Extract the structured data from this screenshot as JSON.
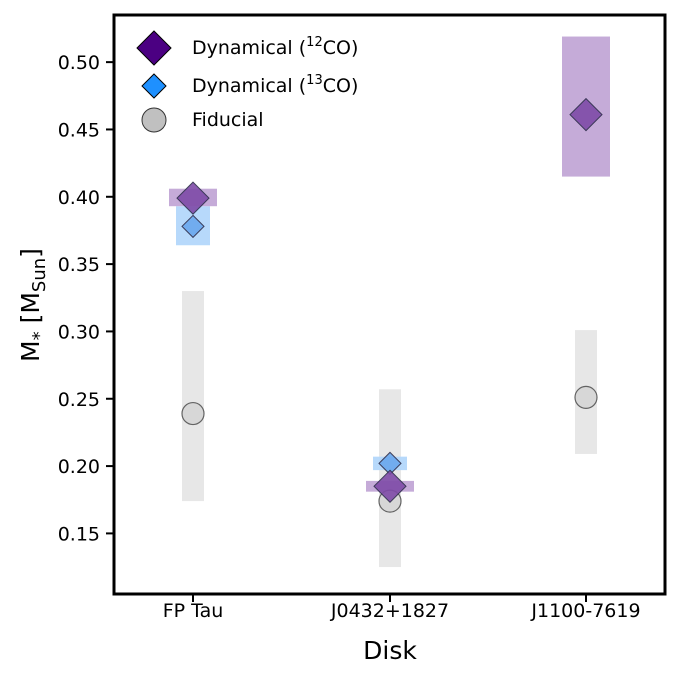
{
  "chart_data": {
    "type": "scatter",
    "title": "",
    "xlabel": "Disk",
    "ylabel_main": "M",
    "ylabel_sub": "*",
    "ylabel_unit_open": "[M",
    "ylabel_unit_sub": "Sun",
    "ylabel_unit_close": "]",
    "categories": [
      "FP Tau",
      "J0432+1827",
      "J1100-7619"
    ],
    "ylim": [
      0.105,
      0.535
    ],
    "yticks": [
      0.15,
      0.2,
      0.25,
      0.3,
      0.35,
      0.4,
      0.45,
      0.5
    ],
    "ytick_labels": [
      "0.15",
      "0.20",
      "0.25",
      "0.30",
      "0.35",
      "0.40",
      "0.45",
      "0.50"
    ],
    "legend_position": "top-left",
    "series": [
      {
        "name": "Dynamical (12CO)",
        "legend_prefix": "Dynamical (",
        "legend_sup": "12",
        "legend_suffix": "CO)",
        "marker": "diamond",
        "color": "#4b0082",
        "point_color": "#7f4ba8",
        "band_color": "#c2a6d6",
        "values": [
          0.399,
          0.185,
          0.461
        ],
        "lower": [
          0.393,
          0.181,
          0.415
        ],
        "upper": [
          0.406,
          0.189,
          0.519
        ]
      },
      {
        "name": "Dynamical (13CO)",
        "legend_prefix": "Dynamical (",
        "legend_sup": "13",
        "legend_suffix": "CO)",
        "marker": "diamond",
        "color": "#1e90ff",
        "point_color": "#6aa8ee",
        "band_color": "#b3d7fb",
        "values": [
          0.378,
          0.202,
          null
        ],
        "lower": [
          0.364,
          0.197,
          null
        ],
        "upper": [
          0.393,
          0.207,
          null
        ]
      },
      {
        "name": "Fiducial",
        "legend_prefix": "Fiducial",
        "legend_sup": "",
        "legend_suffix": "",
        "marker": "circle",
        "color": "#c0c0c0",
        "point_color": "#d6d6d6",
        "band_color": "#e6e6e6",
        "values": [
          0.239,
          0.174,
          0.251
        ],
        "lower": [
          0.174,
          0.125,
          0.209
        ],
        "upper": [
          0.33,
          0.257,
          0.301
        ]
      }
    ]
  }
}
